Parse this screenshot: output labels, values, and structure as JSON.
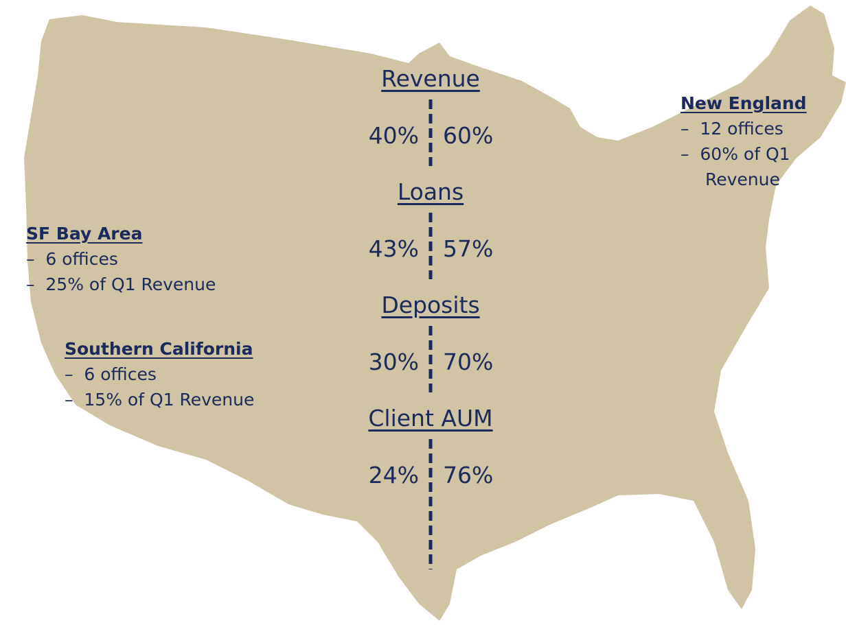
{
  "metrics": [
    {
      "name": "Revenue",
      "west": "40%",
      "east": "60%"
    },
    {
      "name": "Loans",
      "west": "43%",
      "east": "57%"
    },
    {
      "name": "Deposits",
      "west": "30%",
      "east": "70%"
    },
    {
      "name": "Client AUM",
      "west": "24%",
      "east": "76%"
    }
  ],
  "regions": [
    {
      "name": "New England",
      "items": [
        "12 offices",
        "60% of Q1 Revenue"
      ]
    },
    {
      "name": "SF Bay Area",
      "items": [
        "6 offices",
        "25% of Q1 Revenue"
      ]
    },
    {
      "name": "Southern California",
      "items": [
        "6 offices",
        "15% of Q1 Revenue"
      ]
    }
  ]
}
